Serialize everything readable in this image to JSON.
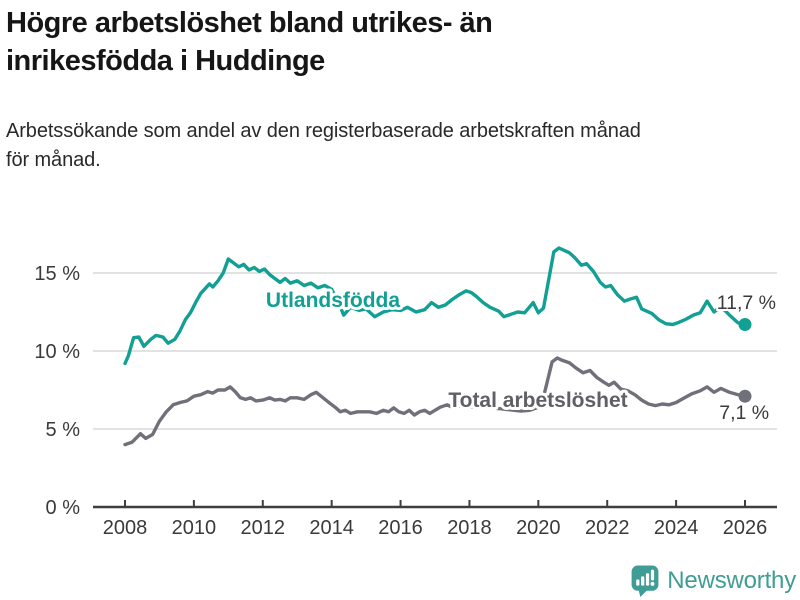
{
  "header": {
    "title_lines": [
      "Högre arbetslöshet bland utrikes- än",
      "inrikesfödda i Huddinge"
    ],
    "subtitle_lines": [
      "Arbetssökande som andel av den registerbaserade arbetskraften månad",
      "för månad."
    ]
  },
  "footer": {
    "brand": "Newsworthy",
    "logo_icon": "bar-chart-speech-bubble"
  },
  "colors": {
    "teal": "#11a093",
    "gray": "#70707a",
    "gray_label": "#5f5f66",
    "grid": "#d9d9d9",
    "axis": "#3e3e3e",
    "tick_text": "#3a3a3a",
    "title_text": "#161616",
    "logo_teal": "#3f9d95"
  },
  "chart_data": {
    "type": "line",
    "title": "Högre arbetslöshet bland utrikes- än inrikesfödda i Huddinge",
    "subtitle": "Arbetssökande som andel av den registerbaserade arbetskraften månad för månad.",
    "unit": "%",
    "grid": "horizontal",
    "legend_position": "inline-labels",
    "xlim": [
      2007.07,
      2026.93
    ],
    "ylim": [
      0,
      17.2
    ],
    "x_ticks": [
      {
        "year": 2008,
        "label": "2008"
      },
      {
        "year": 2010,
        "label": "2010"
      },
      {
        "year": 2012,
        "label": "2012"
      },
      {
        "year": 2014,
        "label": "2014"
      },
      {
        "year": 2016,
        "label": "2016"
      },
      {
        "year": 2018,
        "label": "2018"
      },
      {
        "year": 2020,
        "label": "2020"
      },
      {
        "year": 2022,
        "label": "2022"
      },
      {
        "year": 2024,
        "label": "2024"
      },
      {
        "year": 2026,
        "label": "2026"
      }
    ],
    "y_ticks": [
      {
        "value": 0,
        "label": "0 %"
      },
      {
        "value": 5,
        "label": "5 %"
      },
      {
        "value": 10,
        "label": "10 %"
      },
      {
        "value": 15,
        "label": "15 %"
      }
    ],
    "series": [
      {
        "name": "Utlandsfödda",
        "color": "#11a093",
        "end_label": "11,7 %",
        "end_value": 11.7,
        "label_anchor": [
          2014.04,
          13.27
        ],
        "end_label_anchor": [
          2026.9,
          12.69
        ],
        "points": [
          [
            2008.0,
            9.2
          ],
          [
            2008.1,
            9.7
          ],
          [
            2008.25,
            10.85
          ],
          [
            2008.4,
            10.9
          ],
          [
            2008.55,
            10.3
          ],
          [
            2008.75,
            10.75
          ],
          [
            2008.9,
            11.0
          ],
          [
            2009.1,
            10.9
          ],
          [
            2009.25,
            10.5
          ],
          [
            2009.45,
            10.75
          ],
          [
            2009.6,
            11.3
          ],
          [
            2009.75,
            12.0
          ],
          [
            2009.9,
            12.45
          ],
          [
            2010.05,
            13.1
          ],
          [
            2010.2,
            13.7
          ],
          [
            2010.35,
            14.05
          ],
          [
            2010.45,
            14.3
          ],
          [
            2010.55,
            14.1
          ],
          [
            2010.7,
            14.5
          ],
          [
            2010.85,
            15.0
          ],
          [
            2011.0,
            15.9
          ],
          [
            2011.15,
            15.65
          ],
          [
            2011.3,
            15.4
          ],
          [
            2011.45,
            15.55
          ],
          [
            2011.6,
            15.2
          ],
          [
            2011.75,
            15.35
          ],
          [
            2011.9,
            15.1
          ],
          [
            2012.05,
            15.25
          ],
          [
            2012.2,
            14.9
          ],
          [
            2012.35,
            14.65
          ],
          [
            2012.5,
            14.4
          ],
          [
            2012.65,
            14.65
          ],
          [
            2012.8,
            14.35
          ],
          [
            2013.0,
            14.5
          ],
          [
            2013.2,
            14.2
          ],
          [
            2013.4,
            14.35
          ],
          [
            2013.6,
            14.05
          ],
          [
            2013.8,
            14.2
          ],
          [
            2014.0,
            13.95
          ],
          [
            2014.2,
            13.1
          ],
          [
            2014.35,
            12.3
          ],
          [
            2014.55,
            12.8
          ],
          [
            2014.8,
            12.6
          ],
          [
            2015.0,
            12.7
          ],
          [
            2015.25,
            12.2
          ],
          [
            2015.5,
            12.5
          ],
          [
            2015.75,
            12.65
          ],
          [
            2016.0,
            12.6
          ],
          [
            2016.2,
            12.8
          ],
          [
            2016.45,
            12.5
          ],
          [
            2016.7,
            12.65
          ],
          [
            2016.9,
            13.1
          ],
          [
            2017.1,
            12.8
          ],
          [
            2017.3,
            12.95
          ],
          [
            2017.5,
            13.3
          ],
          [
            2017.7,
            13.6
          ],
          [
            2017.9,
            13.85
          ],
          [
            2018.05,
            13.75
          ],
          [
            2018.2,
            13.5
          ],
          [
            2018.4,
            13.1
          ],
          [
            2018.6,
            12.8
          ],
          [
            2018.85,
            12.55
          ],
          [
            2019.0,
            12.2
          ],
          [
            2019.2,
            12.35
          ],
          [
            2019.4,
            12.5
          ],
          [
            2019.6,
            12.45
          ],
          [
            2019.85,
            13.1
          ],
          [
            2020.0,
            12.45
          ],
          [
            2020.15,
            12.75
          ],
          [
            2020.45,
            16.35
          ],
          [
            2020.6,
            16.6
          ],
          [
            2020.75,
            16.45
          ],
          [
            2020.9,
            16.3
          ],
          [
            2021.05,
            16.0
          ],
          [
            2021.25,
            15.5
          ],
          [
            2021.4,
            15.6
          ],
          [
            2021.6,
            15.1
          ],
          [
            2021.8,
            14.4
          ],
          [
            2021.95,
            14.1
          ],
          [
            2022.1,
            14.2
          ],
          [
            2022.3,
            13.6
          ],
          [
            2022.5,
            13.2
          ],
          [
            2022.7,
            13.35
          ],
          [
            2022.85,
            13.45
          ],
          [
            2023.0,
            12.7
          ],
          [
            2023.15,
            12.55
          ],
          [
            2023.3,
            12.4
          ],
          [
            2023.5,
            12.0
          ],
          [
            2023.7,
            11.75
          ],
          [
            2023.9,
            11.7
          ],
          [
            2024.1,
            11.85
          ],
          [
            2024.3,
            12.05
          ],
          [
            2024.5,
            12.3
          ],
          [
            2024.7,
            12.45
          ],
          [
            2024.9,
            13.2
          ],
          [
            2025.1,
            12.5
          ],
          [
            2025.3,
            12.85
          ],
          [
            2025.55,
            12.3
          ],
          [
            2025.8,
            11.8
          ],
          [
            2026.0,
            11.7
          ]
        ]
      },
      {
        "name": "Total arbetslöshet",
        "color": "#70707a",
        "label_color": "#5f5f66",
        "end_label": "7,1 %",
        "end_value": 7.1,
        "label_anchor": [
          2019.99,
          6.86
        ],
        "end_label_anchor": [
          2026.7,
          5.64
        ],
        "points": [
          [
            2008.0,
            4.0
          ],
          [
            2008.2,
            4.15
          ],
          [
            2008.45,
            4.7
          ],
          [
            2008.6,
            4.4
          ],
          [
            2008.8,
            4.65
          ],
          [
            2009.0,
            5.5
          ],
          [
            2009.2,
            6.1
          ],
          [
            2009.4,
            6.55
          ],
          [
            2009.6,
            6.7
          ],
          [
            2009.8,
            6.8
          ],
          [
            2010.0,
            7.1
          ],
          [
            2010.2,
            7.2
          ],
          [
            2010.4,
            7.4
          ],
          [
            2010.55,
            7.3
          ],
          [
            2010.7,
            7.5
          ],
          [
            2010.9,
            7.5
          ],
          [
            2011.05,
            7.7
          ],
          [
            2011.2,
            7.4
          ],
          [
            2011.35,
            7.0
          ],
          [
            2011.5,
            6.9
          ],
          [
            2011.65,
            7.0
          ],
          [
            2011.8,
            6.8
          ],
          [
            2012.0,
            6.85
          ],
          [
            2012.2,
            7.0
          ],
          [
            2012.35,
            6.85
          ],
          [
            2012.5,
            6.9
          ],
          [
            2012.65,
            6.8
          ],
          [
            2012.8,
            7.0
          ],
          [
            2013.0,
            7.0
          ],
          [
            2013.2,
            6.9
          ],
          [
            2013.4,
            7.2
          ],
          [
            2013.55,
            7.35
          ],
          [
            2013.75,
            7.0
          ],
          [
            2013.95,
            6.65
          ],
          [
            2014.1,
            6.4
          ],
          [
            2014.25,
            6.1
          ],
          [
            2014.4,
            6.2
          ],
          [
            2014.55,
            6.0
          ],
          [
            2014.75,
            6.1
          ],
          [
            2014.95,
            6.1
          ],
          [
            2015.1,
            6.1
          ],
          [
            2015.3,
            6.0
          ],
          [
            2015.5,
            6.2
          ],
          [
            2015.65,
            6.1
          ],
          [
            2015.8,
            6.35
          ],
          [
            2015.95,
            6.1
          ],
          [
            2016.1,
            6.0
          ],
          [
            2016.25,
            6.2
          ],
          [
            2016.4,
            5.9
          ],
          [
            2016.55,
            6.1
          ],
          [
            2016.7,
            6.2
          ],
          [
            2016.85,
            6.0
          ],
          [
            2017.0,
            6.2
          ],
          [
            2017.15,
            6.4
          ],
          [
            2017.35,
            6.55
          ],
          [
            2017.5,
            6.4
          ],
          [
            2017.8,
            6.5
          ],
          [
            2018.0,
            6.4
          ],
          [
            2018.3,
            6.5
          ],
          [
            2018.6,
            6.35
          ],
          [
            2018.9,
            6.3
          ],
          [
            2019.1,
            6.25
          ],
          [
            2019.3,
            6.2
          ],
          [
            2019.5,
            6.15
          ],
          [
            2019.75,
            6.2
          ],
          [
            2019.95,
            6.35
          ],
          [
            2020.1,
            6.6
          ],
          [
            2020.4,
            9.3
          ],
          [
            2020.55,
            9.55
          ],
          [
            2020.7,
            9.4
          ],
          [
            2020.9,
            9.25
          ],
          [
            2021.1,
            8.9
          ],
          [
            2021.3,
            8.6
          ],
          [
            2021.5,
            8.75
          ],
          [
            2021.7,
            8.3
          ],
          [
            2021.9,
            8.0
          ],
          [
            2022.05,
            7.8
          ],
          [
            2022.2,
            8.0
          ],
          [
            2022.4,
            7.55
          ],
          [
            2022.6,
            7.45
          ],
          [
            2022.8,
            7.2
          ],
          [
            2023.0,
            6.85
          ],
          [
            2023.2,
            6.6
          ],
          [
            2023.4,
            6.5
          ],
          [
            2023.6,
            6.6
          ],
          [
            2023.8,
            6.55
          ],
          [
            2024.0,
            6.7
          ],
          [
            2024.2,
            6.95
          ],
          [
            2024.45,
            7.25
          ],
          [
            2024.7,
            7.45
          ],
          [
            2024.9,
            7.7
          ],
          [
            2025.1,
            7.35
          ],
          [
            2025.3,
            7.6
          ],
          [
            2025.55,
            7.35
          ],
          [
            2025.8,
            7.2
          ],
          [
            2026.0,
            7.1
          ]
        ]
      }
    ]
  }
}
